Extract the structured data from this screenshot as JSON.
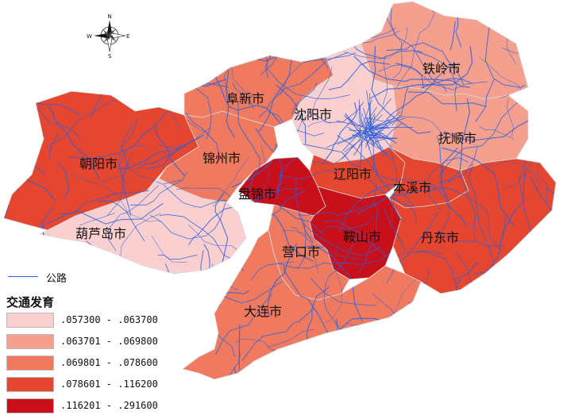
{
  "compass": {
    "n": "N",
    "s": "S",
    "e": "E",
    "w": "W"
  },
  "legend": {
    "road_label": "公路",
    "road_color": "#2f5fdc",
    "title": "交通发育",
    "classes": [
      {
        "range": ".057300 - .063700",
        "color": "#f9cfcf"
      },
      {
        "range": ".063701 - .069800",
        "color": "#f5a08e"
      },
      {
        "range": ".069801 - .078600",
        "color": "#ef7a5f"
      },
      {
        "range": ".078601 - .116200",
        "color": "#e4462f"
      },
      {
        "range": ".116201 - .291600",
        "color": "#c8101a"
      }
    ]
  },
  "cities": [
    {
      "name": "铁岭市",
      "class": 1
    },
    {
      "name": "阜新市",
      "class": 2
    },
    {
      "name": "沈阳市",
      "class": 0
    },
    {
      "name": "抚顺市",
      "class": 1
    },
    {
      "name": "朝阳市",
      "class": 3
    },
    {
      "name": "锦州市",
      "class": 2
    },
    {
      "name": "辽阳市",
      "class": 3
    },
    {
      "name": "本溪市",
      "class": 3
    },
    {
      "name": "盘锦市",
      "class": 4
    },
    {
      "name": "葫芦岛市",
      "class": 0
    },
    {
      "name": "鞍山市",
      "class": 4
    },
    {
      "name": "丹东市",
      "class": 3
    },
    {
      "name": "营口市",
      "class": 2
    },
    {
      "name": "大连市",
      "class": 2
    }
  ]
}
